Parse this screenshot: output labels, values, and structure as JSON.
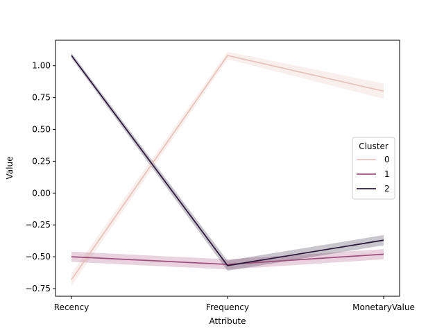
{
  "chart_data": {
    "type": "line",
    "title": "",
    "xlabel": "Attribute",
    "ylabel": "Value",
    "categories": [
      "Recency",
      "Frequency",
      "MonetaryValue"
    ],
    "ylim": [
      -0.81,
      1.2
    ],
    "yticks": [
      -0.75,
      -0.5,
      -0.25,
      0.0,
      0.25,
      0.5,
      0.75,
      1.0
    ],
    "ytick_labels": [
      "−0.75",
      "−0.50",
      "−0.25",
      "0.00",
      "0.25",
      "0.50",
      "0.75",
      "1.00"
    ],
    "legend": {
      "title": "Cluster",
      "placement": "center-right"
    },
    "grid": false,
    "series": [
      {
        "name": "0",
        "color": "#e8c3bd",
        "values": [
          -0.68,
          1.08,
          0.8
        ],
        "ci_lower": [
          -0.73,
          1.05,
          0.74
        ],
        "ci_upper": [
          -0.63,
          1.11,
          0.86
        ]
      },
      {
        "name": "1",
        "color": "#a24f7e",
        "values": [
          -0.5,
          -0.56,
          -0.48
        ],
        "ci_lower": [
          -0.54,
          -0.6,
          -0.52
        ],
        "ci_upper": [
          -0.46,
          -0.52,
          -0.44
        ]
      },
      {
        "name": "2",
        "color": "#2d1a3d",
        "values": [
          1.08,
          -0.57,
          -0.37
        ],
        "ci_lower": [
          1.06,
          -0.61,
          -0.41
        ],
        "ci_upper": [
          1.1,
          -0.53,
          -0.33
        ]
      }
    ]
  }
}
